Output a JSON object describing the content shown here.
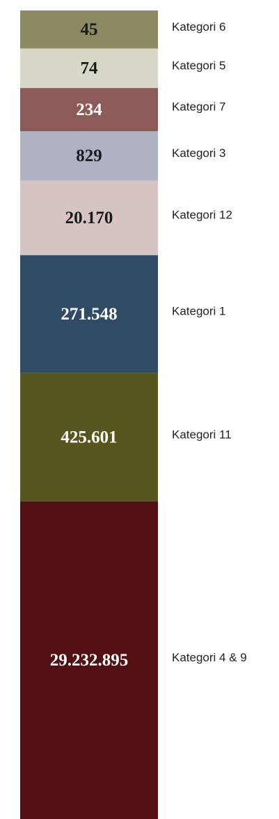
{
  "chart_data": {
    "type": "stacked-column",
    "categories": [
      "Kategori 6",
      "Kategori 5",
      "Kategori 7",
      "Kategori 3",
      "Kategori 12",
      "Kategori 1",
      "Kategori 11",
      "Kategori 4 & 9"
    ],
    "values": [
      45,
      74,
      234,
      829,
      20170,
      271548,
      425601,
      29232895
    ],
    "value_labels": [
      "45",
      "74",
      "234",
      "829",
      "20.170",
      "271.548",
      "425.601",
      "29.232.895"
    ],
    "colors": [
      "#8b8a63",
      "#d9d7c7",
      "#8c5a58",
      "#aeb2c3",
      "#d8c3c3",
      "#304b66",
      "#57561f",
      "#521015"
    ]
  }
}
